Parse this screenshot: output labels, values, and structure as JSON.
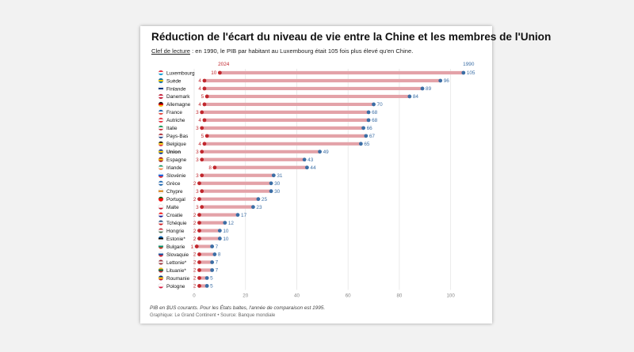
{
  "title": "Réduction de l'écart du niveau de vie entre la Chine et les membres de l'Union",
  "reading_key_label": "Clef de lecture",
  "reading_key_text": " : en 1990, le PIB par habitant au Luxembourg était 105 fois plus élevé qu'en Chine.",
  "footnote": "PIB en $US courants. Pour les États baltes, l'année de comparaison est 1995.",
  "credit": "Graphique: Le Grand Continent • Source: Banque mondiale",
  "colors": {
    "start": "#c1272d",
    "end": "#3b6ea5",
    "bar": "#e3a2a8",
    "grid": "#e6e6e6",
    "axis_text": "#888888"
  },
  "chart_data": {
    "type": "dumbbell",
    "series": [
      {
        "name": "2024",
        "color": "#c1272d"
      },
      {
        "name": "1990",
        "color": "#3b6ea5"
      }
    ],
    "x_ticks": [
      0,
      20,
      40,
      60,
      80,
      100
    ],
    "xlim": [
      0,
      110
    ],
    "grid": true,
    "rows": [
      {
        "label": "Luxembourg",
        "v2024": 10,
        "v1990": 105,
        "flag": [
          "#ed2939",
          "#ffffff",
          "#00a1de"
        ]
      },
      {
        "label": "Suède",
        "v2024": 4,
        "v1990": 96,
        "flag": [
          "#006aa7",
          "#fecc00",
          "#006aa7"
        ]
      },
      {
        "label": "Finlande",
        "v2024": 4,
        "v1990": 89,
        "flag": [
          "#ffffff",
          "#003580",
          "#ffffff"
        ]
      },
      {
        "label": "Danemark",
        "v2024": 5,
        "v1990": 84,
        "flag": [
          "#c8102e",
          "#ffffff",
          "#c8102e"
        ]
      },
      {
        "label": "Allemagne",
        "v2024": 4,
        "v1990": 70,
        "flag": [
          "#000000",
          "#dd0000",
          "#ffce00"
        ]
      },
      {
        "label": "France",
        "v2024": 3,
        "v1990": 68,
        "flag": [
          "#0055a4",
          "#ffffff",
          "#ef4135"
        ]
      },
      {
        "label": "Autriche",
        "v2024": 4,
        "v1990": 68,
        "flag": [
          "#ed2939",
          "#ffffff",
          "#ed2939"
        ]
      },
      {
        "label": "Italie",
        "v2024": 3,
        "v1990": 66,
        "flag": [
          "#009246",
          "#ffffff",
          "#ce2b37"
        ]
      },
      {
        "label": "Pays-Bas",
        "v2024": 5,
        "v1990": 67,
        "flag": [
          "#ae1c28",
          "#ffffff",
          "#21468b"
        ]
      },
      {
        "label": "Belgique",
        "v2024": 4,
        "v1990": 65,
        "flag": [
          "#000000",
          "#fdda24",
          "#ef3340"
        ]
      },
      {
        "label": "Union",
        "v2024": 3,
        "v1990": 49,
        "flag": [
          "#003399",
          "#ffcc00",
          "#003399"
        ],
        "bold": true
      },
      {
        "label": "Espagne",
        "v2024": 3,
        "v1990": 43,
        "flag": [
          "#aa151b",
          "#f1bf00",
          "#aa151b"
        ]
      },
      {
        "label": "Irlande",
        "v2024": 8,
        "v1990": 44,
        "flag": [
          "#169b62",
          "#ffffff",
          "#ff883e"
        ]
      },
      {
        "label": "Slovénie",
        "v2024": 3,
        "v1990": 31,
        "flag": [
          "#ffffff",
          "#005ce5",
          "#ed1c24"
        ]
      },
      {
        "label": "Grèce",
        "v2024": 2,
        "v1990": 30,
        "flag": [
          "#0d5eaf",
          "#ffffff",
          "#0d5eaf"
        ]
      },
      {
        "label": "Chypre",
        "v2024": 3,
        "v1990": 30,
        "flag": [
          "#ffffff",
          "#d57800",
          "#ffffff"
        ]
      },
      {
        "label": "Portugal",
        "v2024": 2,
        "v1990": 25,
        "flag": [
          "#006600",
          "#ff0000",
          "#ff0000"
        ]
      },
      {
        "label": "Malte",
        "v2024": 3,
        "v1990": 23,
        "flag": [
          "#ffffff",
          "#ffffff",
          "#cf142b"
        ]
      },
      {
        "label": "Croatie",
        "v2024": 2,
        "v1990": 17,
        "flag": [
          "#ff0000",
          "#ffffff",
          "#171796"
        ]
      },
      {
        "label": "Tchéquie",
        "v2024": 2,
        "v1990": 12,
        "flag": [
          "#11457e",
          "#ffffff",
          "#d7141a"
        ]
      },
      {
        "label": "Hongrie",
        "v2024": 2,
        "v1990": 10,
        "flag": [
          "#ce2939",
          "#ffffff",
          "#477050"
        ]
      },
      {
        "label": "Estonie*",
        "v2024": 2,
        "v1990": 10,
        "flag": [
          "#0072ce",
          "#000000",
          "#ffffff"
        ]
      },
      {
        "label": "Bulgarie",
        "v2024": 1,
        "v1990": 7,
        "flag": [
          "#ffffff",
          "#00966e",
          "#d62612"
        ]
      },
      {
        "label": "Slovaquie",
        "v2024": 2,
        "v1990": 8,
        "flag": [
          "#ffffff",
          "#0b4ea2",
          "#ee1c25"
        ]
      },
      {
        "label": "Lettonie*",
        "v2024": 2,
        "v1990": 7,
        "flag": [
          "#9e3039",
          "#ffffff",
          "#9e3039"
        ]
      },
      {
        "label": "Lituanie*",
        "v2024": 2,
        "v1990": 7,
        "flag": [
          "#fdb913",
          "#006a44",
          "#c1272d"
        ]
      },
      {
        "label": "Roumanie",
        "v2024": 2,
        "v1990": 5,
        "flag": [
          "#002b7f",
          "#fcd116",
          "#ce1126"
        ]
      },
      {
        "label": "Pologne",
        "v2024": 2,
        "v1990": 5,
        "flag": [
          "#ffffff",
          "#ffffff",
          "#dc143c"
        ]
      }
    ]
  }
}
